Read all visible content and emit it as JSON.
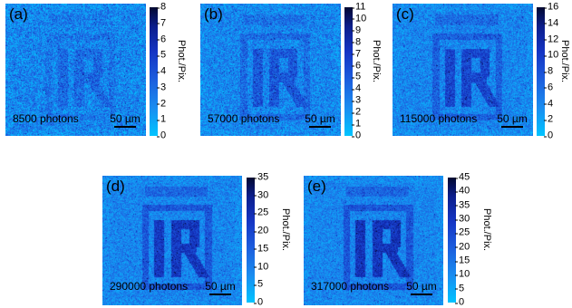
{
  "scale_bar_label": "50 µm",
  "colorbar_unit": "Phot./Pix.",
  "colors": {
    "background_cyan": "#22b8f8",
    "mid_blue": "#1c5bdc",
    "dark_navy": "#020830"
  },
  "panels": [
    {
      "label": "(a)",
      "photons": "8500 photons",
      "contrast": 0.3,
      "ticks": [
        "8",
        "7",
        "6",
        "5",
        "4",
        "3",
        "2",
        "1",
        "0"
      ]
    },
    {
      "label": "(b)",
      "photons": "57000 photons",
      "contrast": 0.5,
      "ticks": [
        "11",
        "10",
        "9",
        "8",
        "7",
        "6",
        "5",
        "4",
        "3",
        "2",
        "1",
        "0"
      ]
    },
    {
      "label": "(c)",
      "photons": "115000 photons",
      "contrast": 0.7,
      "ticks": [
        "16",
        "14",
        "12",
        "10",
        "8",
        "6",
        "4",
        "2",
        "0"
      ]
    },
    {
      "label": "(d)",
      "photons": "290000 photons",
      "contrast": 0.88,
      "ticks": [
        "35",
        "30",
        "25",
        "20",
        "15",
        "10",
        "5",
        "0"
      ]
    },
    {
      "label": "(e)",
      "photons": "317000 photons",
      "contrast": 0.92,
      "ticks": [
        "45",
        "40",
        "35",
        "30",
        "25",
        "20",
        "15",
        "10",
        "5",
        "0"
      ]
    }
  ]
}
